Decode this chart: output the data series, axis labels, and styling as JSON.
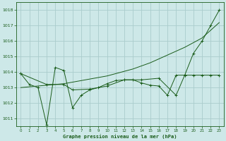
{
  "background_color": "#cde8e8",
  "grid_color": "#aacccc",
  "line_color": "#1a5c1a",
  "xlabel": "Graphe pression niveau de la mer (hPa)",
  "xlim": [
    -0.5,
    23.5
  ],
  "ylim": [
    1010.5,
    1018.5
  ],
  "yticks": [
    1011,
    1012,
    1013,
    1014,
    1015,
    1016,
    1017,
    1018
  ],
  "xticks": [
    0,
    1,
    2,
    3,
    4,
    5,
    6,
    7,
    8,
    9,
    10,
    11,
    12,
    13,
    14,
    15,
    16,
    17,
    18,
    19,
    20,
    21,
    22,
    23
  ],
  "series": [
    {
      "x": [
        0,
        1,
        2,
        3,
        4,
        5,
        6,
        7,
        8,
        9,
        10,
        11,
        12,
        13,
        14,
        15,
        16,
        17,
        18,
        19,
        20,
        21,
        22,
        23
      ],
      "y": [
        1013.9,
        1013.2,
        1013.0,
        1010.6,
        1014.3,
        1014.1,
        1011.7,
        1012.5,
        1012.85,
        1013.0,
        1013.25,
        1013.45,
        1013.5,
        1013.5,
        1013.3,
        1013.15,
        1013.1,
        1012.5,
        1013.8,
        1013.8,
        1013.8,
        1013.8,
        1013.8,
        1013.8
      ],
      "marker": "+",
      "linestyle": "-"
    },
    {
      "x": [
        0,
        1,
        2,
        3,
        4,
        5,
        6,
        7,
        8,
        9,
        10,
        11,
        12,
        13,
        14,
        15,
        16,
        17,
        18,
        19,
        20,
        21,
        22,
        23
      ],
      "y": [
        1013.0,
        1013.05,
        1013.1,
        1013.15,
        1013.2,
        1013.25,
        1013.35,
        1013.45,
        1013.55,
        1013.65,
        1013.75,
        1013.9,
        1014.05,
        1014.2,
        1014.4,
        1014.6,
        1014.85,
        1015.1,
        1015.35,
        1015.6,
        1015.9,
        1016.2,
        1016.7,
        1017.2
      ],
      "marker": null,
      "linestyle": "-"
    },
    {
      "x": [
        0,
        3,
        5,
        6,
        8,
        10,
        12,
        14,
        16,
        18,
        19,
        20,
        21,
        22,
        23
      ],
      "y": [
        1013.9,
        1013.2,
        1013.2,
        1012.85,
        1012.9,
        1013.1,
        1013.5,
        1013.5,
        1013.6,
        1012.5,
        1013.8,
        1015.2,
        1016.0,
        1017.0,
        1018.0
      ],
      "marker": "+",
      "linestyle": "-"
    }
  ]
}
